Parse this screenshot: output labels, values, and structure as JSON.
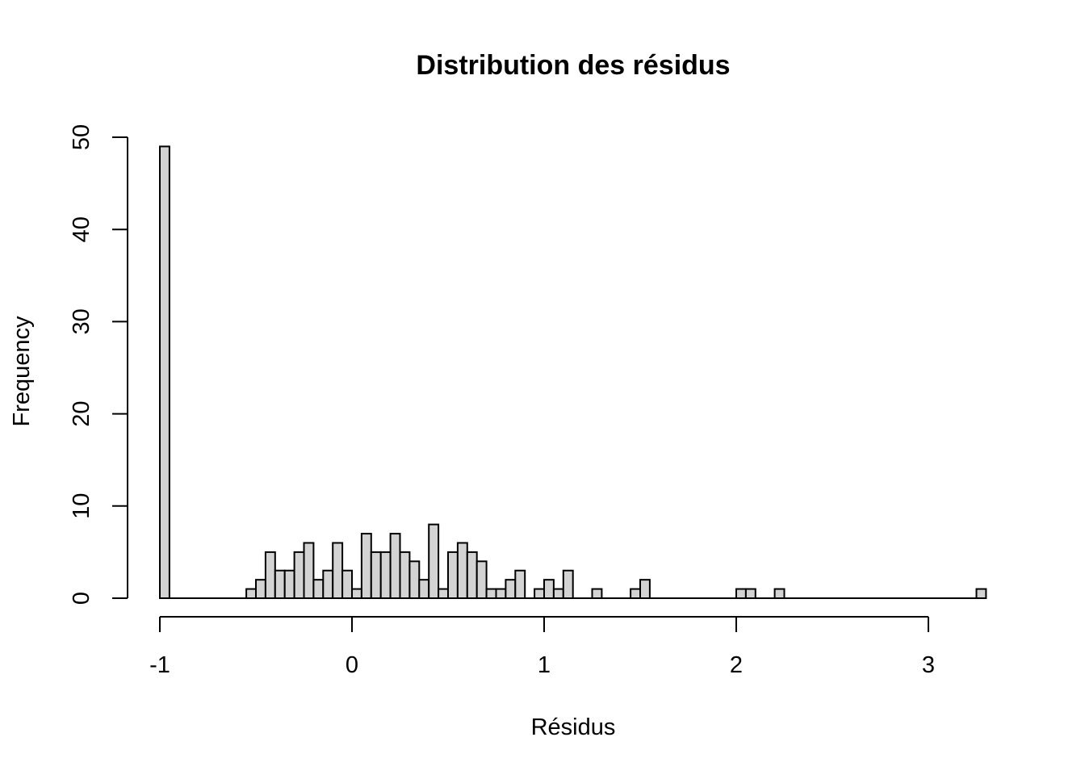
{
  "chart_data": {
    "type": "bar",
    "title": "Distribution des résidus",
    "xlabel": "Résidus",
    "ylabel": "Frequency",
    "xlim": [
      -1,
      3.3
    ],
    "ylim": [
      0,
      50
    ],
    "bin_width": 0.05,
    "x_ticks": [
      -1,
      0,
      1,
      2,
      3
    ],
    "x_tick_labels": [
      "-1",
      "0",
      "1",
      "2",
      "3"
    ],
    "y_ticks": [
      0,
      10,
      20,
      30,
      40,
      50
    ],
    "y_tick_labels": [
      "0",
      "10",
      "20",
      "30",
      "40",
      "50"
    ],
    "bin_starts": [
      -1.0,
      -0.95,
      -0.9,
      -0.85,
      -0.8,
      -0.75,
      -0.7,
      -0.65,
      -0.6,
      -0.55,
      -0.5,
      -0.45,
      -0.4,
      -0.35,
      -0.3,
      -0.25,
      -0.2,
      -0.15,
      -0.1,
      -0.05,
      0.0,
      0.05,
      0.1,
      0.15,
      0.2,
      0.25,
      0.3,
      0.35,
      0.4,
      0.45,
      0.5,
      0.55,
      0.6,
      0.65,
      0.7,
      0.75,
      0.8,
      0.85,
      0.9,
      0.95,
      1.0,
      1.05,
      1.1,
      1.15,
      1.2,
      1.25,
      1.3,
      1.35,
      1.4,
      1.45,
      1.5,
      1.55,
      1.6,
      1.65,
      1.7,
      1.75,
      1.8,
      1.85,
      1.9,
      1.95,
      2.0,
      2.05,
      2.1,
      2.15,
      2.2,
      2.25,
      2.3,
      2.35,
      2.4,
      2.45,
      2.5,
      2.55,
      2.6,
      2.65,
      2.7,
      2.75,
      2.8,
      2.85,
      2.9,
      2.95,
      3.0,
      3.05,
      3.1,
      3.15,
      3.2,
      3.25
    ],
    "values": [
      49,
      0,
      0,
      0,
      0,
      0,
      0,
      0,
      0,
      1,
      2,
      5,
      3,
      3,
      5,
      6,
      2,
      3,
      6,
      3,
      1,
      7,
      5,
      5,
      7,
      5,
      4,
      2,
      8,
      1,
      5,
      6,
      5,
      4,
      1,
      1,
      2,
      3,
      0,
      1,
      2,
      1,
      3,
      0,
      0,
      1,
      0,
      0,
      0,
      1,
      2,
      0,
      0,
      0,
      0,
      0,
      0,
      0,
      0,
      0,
      1,
      1,
      0,
      0,
      1,
      0,
      0,
      0,
      0,
      0,
      0,
      0,
      0,
      0,
      0,
      0,
      0,
      0,
      0,
      0,
      0,
      0,
      0,
      0,
      0,
      1
    ],
    "colors": {
      "bar_fill": "#d3d3d3",
      "bar_stroke": "#000000",
      "background": "#ffffff"
    },
    "grid": false
  }
}
